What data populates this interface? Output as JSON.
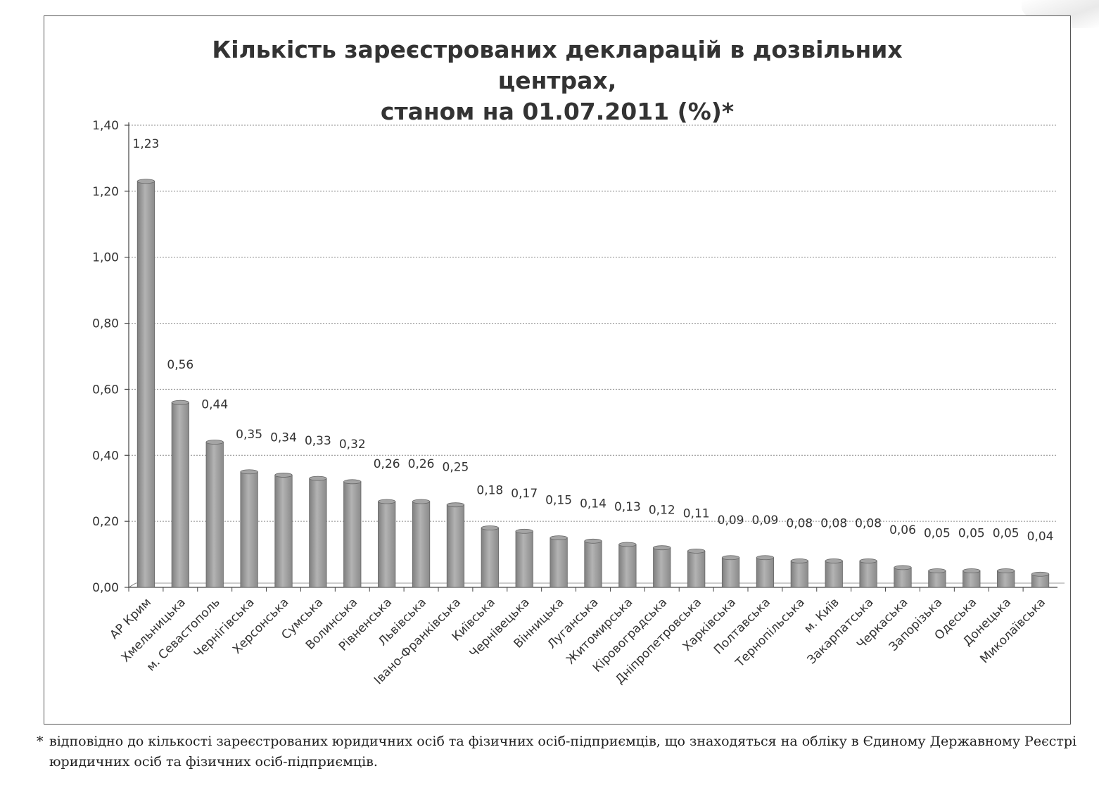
{
  "chart_data": {
    "type": "bar",
    "title_lines": [
      "Кількість зареєстрованих декларацій в дозвільних",
      "центрах,",
      "станом на 01.07.2011 (%)*"
    ],
    "categories": [
      "АР Крим",
      "Хмельницька",
      "м. Севастополь",
      "Чернігівська",
      "Херсонська",
      "Сумська",
      "Волинська",
      "Рівненська",
      "Львівська",
      "Івано-Франківська",
      "Київська",
      "Чернівецька",
      "Вінницька",
      "Луганська",
      "Житомирська",
      "Кіровоградська",
      "Дніпропетровська",
      "Харківська",
      "Полтавська",
      "Тернопільська",
      "м. Київ",
      "Закарпатська",
      "Черкаська",
      "Запорізька",
      "Одеська",
      "Донецька",
      "Миколаївська"
    ],
    "values": [
      1.23,
      0.56,
      0.44,
      0.35,
      0.34,
      0.33,
      0.32,
      0.26,
      0.26,
      0.25,
      0.18,
      0.17,
      0.15,
      0.14,
      0.13,
      0.12,
      0.11,
      0.09,
      0.09,
      0.08,
      0.08,
      0.08,
      0.06,
      0.05,
      0.05,
      0.05,
      0.04
    ],
    "data_labels": [
      "1,23",
      "0,56",
      "0,44",
      "0,35",
      "0,34",
      "0,33",
      "0,32",
      "0,26",
      "0,26",
      "0,25",
      "0,18",
      "0,17",
      "0,15",
      "0,14",
      "0,13",
      "0,12",
      "0,11",
      "0,09",
      "0,09",
      "0,08",
      "0,08",
      "0,08",
      "0,06",
      "0,05",
      "0,05",
      "0,05",
      "0,04"
    ],
    "y_ticks": [
      0,
      0.2,
      0.4,
      0.6,
      0.8,
      1.0,
      1.2,
      1.4
    ],
    "y_tick_labels": [
      "0,00",
      "0,20",
      "0,40",
      "0,60",
      "0,80",
      "1,00",
      "1,20",
      "1,40"
    ],
    "ylim": [
      0,
      1.4
    ],
    "grid": true,
    "bar_color": "#9a9a9a"
  },
  "footnote": {
    "mark": "*",
    "text": "відповідно до кількості зареєстрованих юридичних осіб та фізичних осіб-підприємців, що знаходяться на обліку в Єдиному Державному Реєстрі юридичних осіб та фізичних осіб-підприємців."
  }
}
